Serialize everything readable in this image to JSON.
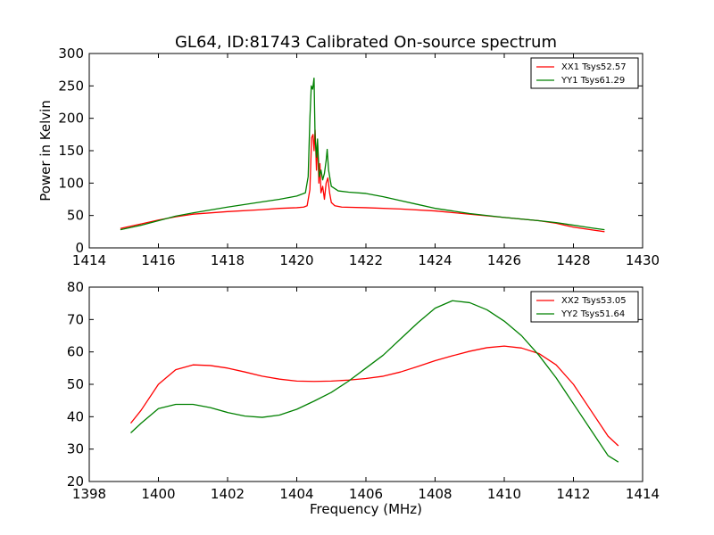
{
  "title": "GL64, ID:81743 Calibrated On-source spectrum",
  "colors": {
    "XX": "#ff0000",
    "YY": "#008000"
  },
  "chart_data": [
    {
      "type": "line",
      "xlim": [
        1414,
        1430
      ],
      "ylim": [
        0,
        300
      ],
      "xticks": [
        1414,
        1416,
        1418,
        1420,
        1422,
        1424,
        1426,
        1428,
        1430
      ],
      "yticks": [
        0,
        50,
        100,
        150,
        200,
        250,
        300
      ],
      "xlabel": "",
      "ylabel": "Power in Kelvin",
      "legend": "top-right",
      "series": [
        {
          "name": "XX1 Tsys52.57",
          "color": "#ff0000",
          "points": [
            [
              1414.9,
              30
            ],
            [
              1415.5,
              37
            ],
            [
              1416,
              43
            ],
            [
              1416.5,
              48
            ],
            [
              1417,
              52
            ],
            [
              1418,
              56
            ],
            [
              1419,
              59
            ],
            [
              1419.5,
              61
            ],
            [
              1420,
              62
            ],
            [
              1420.2,
              63
            ],
            [
              1420.3,
              65
            ],
            [
              1420.38,
              90
            ],
            [
              1420.43,
              170
            ],
            [
              1420.47,
              175
            ],
            [
              1420.5,
              150
            ],
            [
              1420.53,
              182
            ],
            [
              1420.57,
              120
            ],
            [
              1420.6,
              165
            ],
            [
              1420.64,
              100
            ],
            [
              1420.67,
              130
            ],
            [
              1420.7,
              85
            ],
            [
              1420.75,
              95
            ],
            [
              1420.8,
              75
            ],
            [
              1420.85,
              100
            ],
            [
              1420.9,
              108
            ],
            [
              1420.95,
              85
            ],
            [
              1421,
              70
            ],
            [
              1421.1,
              65
            ],
            [
              1421.3,
              63
            ],
            [
              1422,
              62
            ],
            [
              1423,
              60
            ],
            [
              1424,
              57
            ],
            [
              1425,
              52
            ],
            [
              1426,
              47
            ],
            [
              1427,
              42
            ],
            [
              1427.5,
              38
            ],
            [
              1428,
              32
            ],
            [
              1428.5,
              28
            ],
            [
              1428.9,
              25
            ]
          ]
        },
        {
          "name": "YY1 Tsys61.29",
          "color": "#008000",
          "points": [
            [
              1414.9,
              28
            ],
            [
              1415.5,
              35
            ],
            [
              1416,
              42
            ],
            [
              1416.5,
              49
            ],
            [
              1417,
              54
            ],
            [
              1418,
              63
            ],
            [
              1419,
              71
            ],
            [
              1419.5,
              75
            ],
            [
              1420,
              80
            ],
            [
              1420.25,
              85
            ],
            [
              1420.33,
              110
            ],
            [
              1420.38,
              200
            ],
            [
              1420.42,
              250
            ],
            [
              1420.46,
              245
            ],
            [
              1420.5,
              262
            ],
            [
              1420.53,
              170
            ],
            [
              1420.57,
              140
            ],
            [
              1420.6,
              168
            ],
            [
              1420.65,
              110
            ],
            [
              1420.7,
              120
            ],
            [
              1420.75,
              105
            ],
            [
              1420.8,
              115
            ],
            [
              1420.85,
              135
            ],
            [
              1420.88,
              152
            ],
            [
              1420.92,
              120
            ],
            [
              1421,
              95
            ],
            [
              1421.2,
              88
            ],
            [
              1421.5,
              86
            ],
            [
              1422,
              84
            ],
            [
              1422.5,
              79
            ],
            [
              1423,
              73
            ],
            [
              1423.5,
              67
            ],
            [
              1424,
              61
            ],
            [
              1424.5,
              57
            ],
            [
              1425,
              53
            ],
            [
              1426,
              47
            ],
            [
              1427,
              42
            ],
            [
              1427.5,
              39
            ],
            [
              1428,
              35
            ],
            [
              1428.5,
              31
            ],
            [
              1428.9,
              28
            ]
          ]
        }
      ]
    },
    {
      "type": "line",
      "xlim": [
        1398,
        1414
      ],
      "ylim": [
        20,
        80
      ],
      "xticks": [
        1398,
        1400,
        1402,
        1404,
        1406,
        1408,
        1410,
        1412,
        1414
      ],
      "yticks": [
        20,
        30,
        40,
        50,
        60,
        70,
        80
      ],
      "xlabel": "Frequency (MHz)",
      "ylabel": "",
      "legend": "top-right",
      "series": [
        {
          "name": "XX2 Tsys53.05",
          "color": "#ff0000",
          "points": [
            [
              1399.2,
              38
            ],
            [
              1399.5,
              42
            ],
            [
              1400,
              50
            ],
            [
              1400.5,
              54.5
            ],
            [
              1401,
              56
            ],
            [
              1401.5,
              55.8
            ],
            [
              1402,
              55
            ],
            [
              1402.5,
              53.8
            ],
            [
              1403,
              52.5
            ],
            [
              1403.5,
              51.6
            ],
            [
              1404,
              51
            ],
            [
              1404.5,
              50.9
            ],
            [
              1405,
              51
            ],
            [
              1405.5,
              51.3
            ],
            [
              1406,
              51.8
            ],
            [
              1406.5,
              52.5
            ],
            [
              1407,
              53.8
            ],
            [
              1407.5,
              55.5
            ],
            [
              1408,
              57.3
            ],
            [
              1408.5,
              58.8
            ],
            [
              1409,
              60.2
            ],
            [
              1409.5,
              61.3
            ],
            [
              1410,
              61.8
            ],
            [
              1410.5,
              61.2
            ],
            [
              1411,
              59.5
            ],
            [
              1411.5,
              56
            ],
            [
              1412,
              50
            ],
            [
              1412.5,
              42
            ],
            [
              1413,
              34
            ],
            [
              1413.3,
              31
            ]
          ]
        },
        {
          "name": "YY2 Tsys51.64",
          "color": "#008000",
          "points": [
            [
              1399.2,
              35
            ],
            [
              1399.5,
              38
            ],
            [
              1400,
              42.5
            ],
            [
              1400.5,
              43.8
            ],
            [
              1401,
              43.8
            ],
            [
              1401.5,
              42.8
            ],
            [
              1402,
              41.3
            ],
            [
              1402.5,
              40.2
            ],
            [
              1403,
              39.8
            ],
            [
              1403.5,
              40.5
            ],
            [
              1404,
              42.3
            ],
            [
              1404.5,
              44.8
            ],
            [
              1405,
              47.5
            ],
            [
              1405.5,
              51
            ],
            [
              1406,
              55
            ],
            [
              1406.5,
              59
            ],
            [
              1407,
              64
            ],
            [
              1407.5,
              69
            ],
            [
              1408,
              73.5
            ],
            [
              1408.5,
              75.8
            ],
            [
              1409,
              75.2
            ],
            [
              1409.5,
              73
            ],
            [
              1410,
              69.5
            ],
            [
              1410.5,
              65
            ],
            [
              1411,
              59
            ],
            [
              1411.5,
              52
            ],
            [
              1412,
              44
            ],
            [
              1412.5,
              36
            ],
            [
              1413,
              28
            ],
            [
              1413.3,
              26
            ]
          ]
        }
      ]
    }
  ]
}
